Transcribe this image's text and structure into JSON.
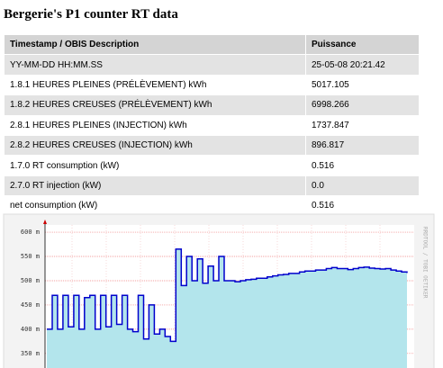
{
  "header": {
    "title": "Bergerie's P1 counter RT data"
  },
  "table": {
    "columns": [
      "Timestamp / OBIS Description",
      "Puissance"
    ],
    "rows": [
      [
        "YY-MM-DD HH:MM.SS",
        "25-05-08 20:21.42"
      ],
      [
        "1.8.1 HEURES PLEINES (PRÉLÈVEMENT) kWh",
        "5017.105"
      ],
      [
        "1.8.2 HEURES CREUSES (PRÉLÈVEMENT) kWh",
        "6998.266"
      ],
      [
        "2.8.1 HEURES PLEINES (INJECTION) kWh",
        "1737.847"
      ],
      [
        "2.8.2 HEURES CREUSES (INJECTION) kWh",
        "896.817"
      ],
      [
        "1.7.0 RT consumption (kW)",
        "0.516"
      ],
      [
        "2.7.0 RT injection (kW)",
        "0.0"
      ],
      [
        "net consumption (kW)",
        "0.516"
      ]
    ]
  },
  "chart_data": {
    "type": "line",
    "annotation": "RRDTOOL / TOBI OETIKER",
    "color": "#0000cc",
    "fill": "#b3e5ec",
    "ylim": [
      320,
      615
    ],
    "yticks": [
      {
        "value": 350,
        "label": "350 m"
      },
      {
        "value": 400,
        "label": "400 m"
      },
      {
        "value": 450,
        "label": "450 m"
      },
      {
        "value": 500,
        "label": "500 m"
      },
      {
        "value": 550,
        "label": "550 m"
      },
      {
        "value": 600,
        "label": "600 m"
      }
    ],
    "grid": true,
    "values": [
      400,
      470,
      400,
      470,
      405,
      470,
      400,
      465,
      470,
      400,
      470,
      405,
      470,
      410,
      470,
      400,
      395,
      470,
      380,
      450,
      390,
      400,
      385,
      375,
      565,
      490,
      550,
      500,
      545,
      495,
      530,
      500,
      550,
      500,
      500,
      498,
      500,
      502,
      503,
      505,
      505,
      508,
      510,
      512,
      513,
      515,
      515,
      518,
      520,
      520,
      522,
      522,
      525,
      527,
      525,
      525,
      523,
      525,
      527,
      528,
      526,
      525,
      524,
      525,
      522,
      520,
      518,
      516
    ]
  }
}
